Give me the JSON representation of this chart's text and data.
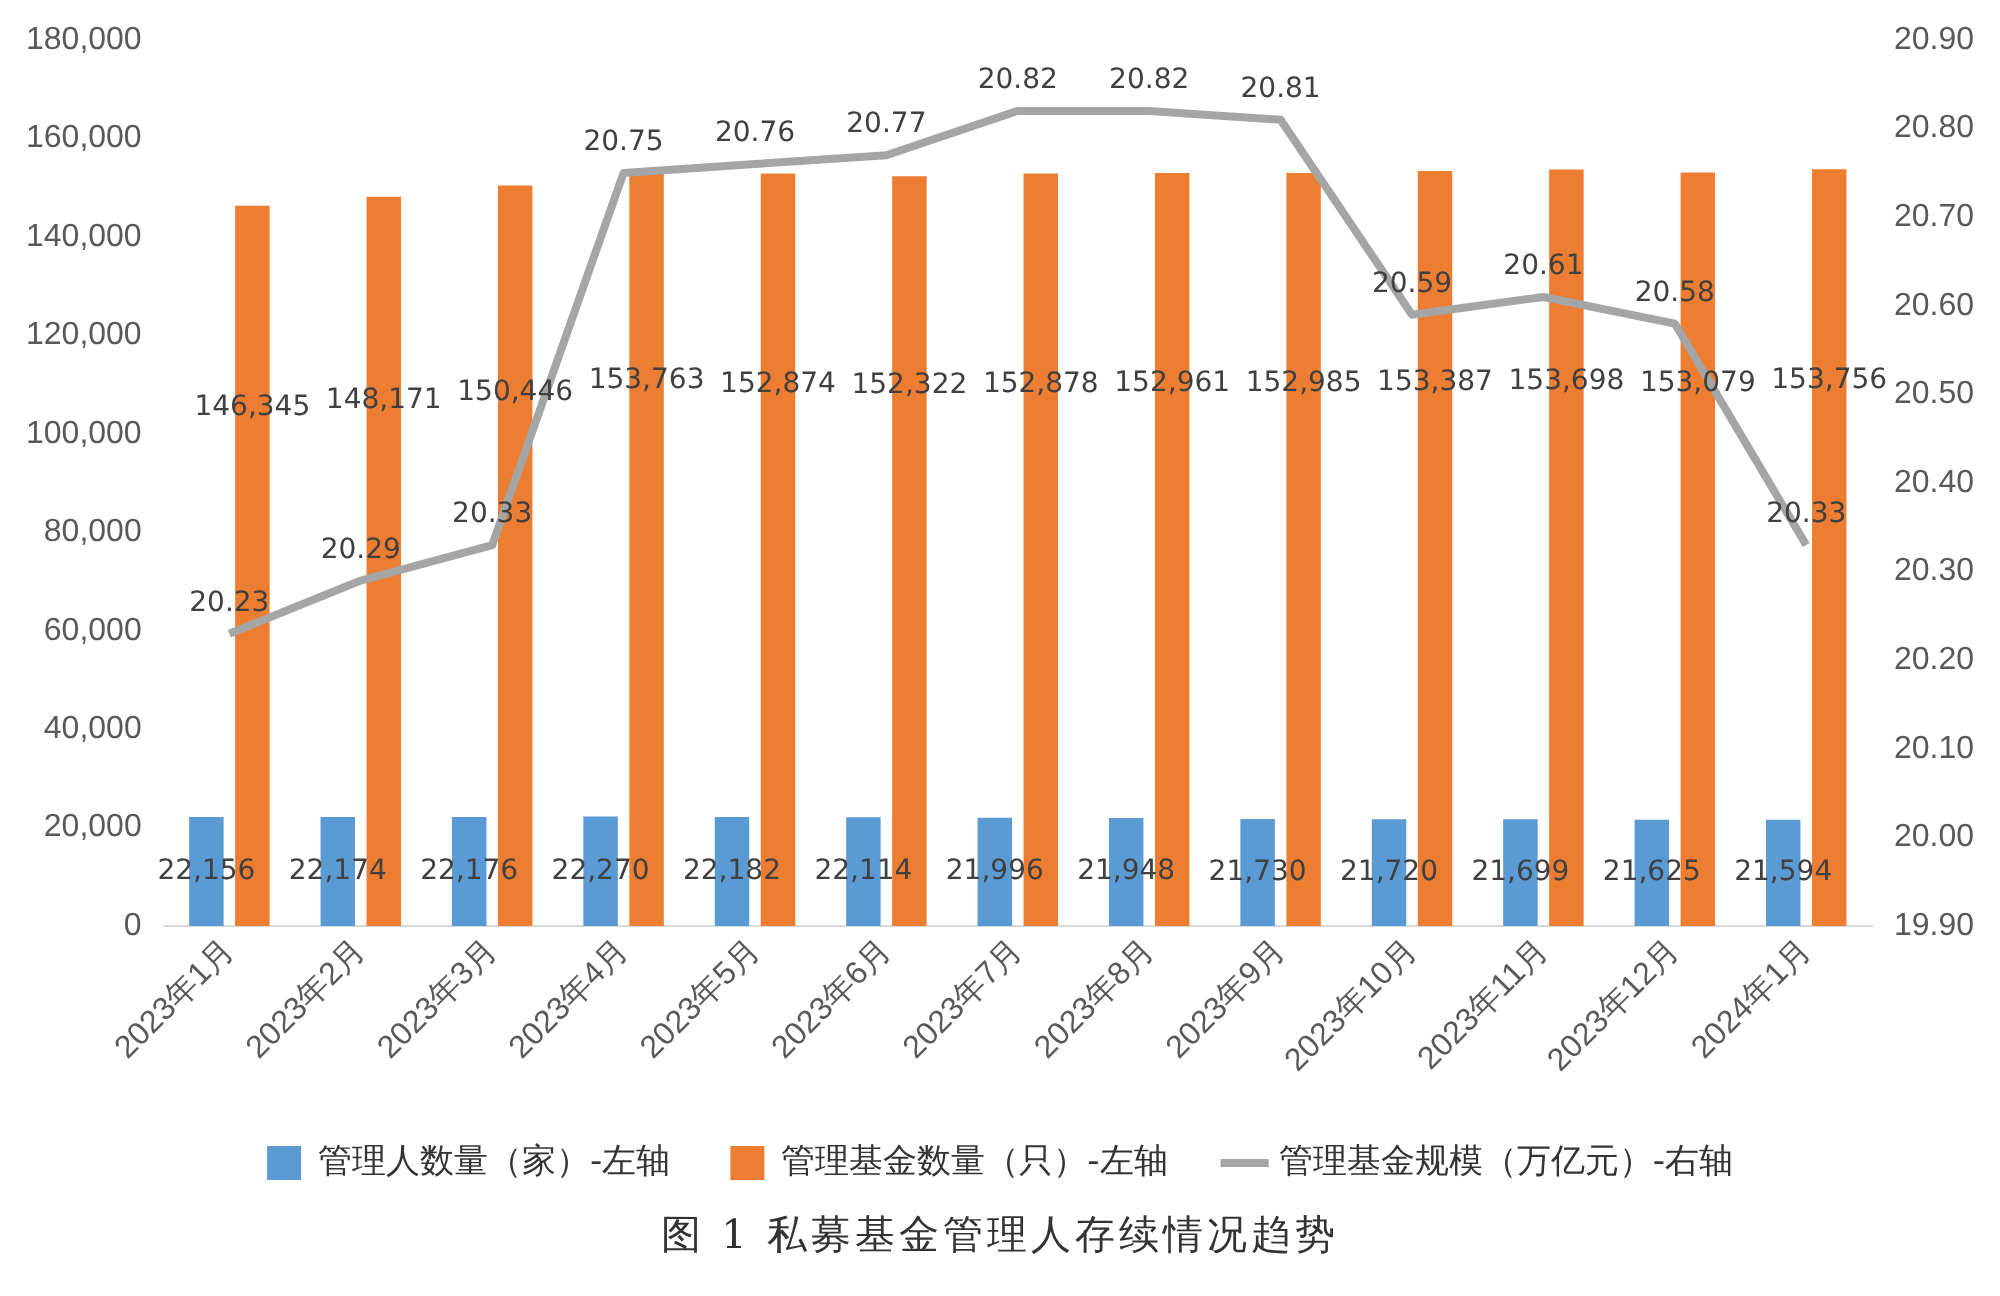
{
  "chart_data": {
    "type": "bar",
    "title": "图 1 私募基金管理人存续情况趋势",
    "categories": [
      "2023年1月",
      "2023年2月",
      "2023年3月",
      "2023年4月",
      "2023年5月",
      "2023年6月",
      "2023年7月",
      "2023年8月",
      "2023年9月",
      "2023年10月",
      "2023年11月",
      "2023年12月",
      "2024年1月"
    ],
    "series": [
      {
        "name": "管理人数量（家）-左轴",
        "color": "#5b9bd5",
        "values": [
          22156,
          22174,
          22176,
          22270,
          22182,
          22114,
          21996,
          21948,
          21730,
          21720,
          21699,
          21625,
          21594
        ],
        "value_labels": [
          "22,156",
          "22,174",
          "22,176",
          "22,270",
          "22,182",
          "22,114",
          "21,996",
          "21,948",
          "21,730",
          "21,720",
          "21,699",
          "21,625",
          "21,594"
        ]
      },
      {
        "name": "管理基金数量（只）-左轴",
        "color": "#ed7d31",
        "values": [
          146345,
          148171,
          150446,
          153763,
          152874,
          152322,
          152878,
          152961,
          152985,
          153387,
          153698,
          153079,
          153756
        ],
        "value_labels": [
          "146,345",
          "148,171",
          "150,446",
          "153,763",
          "152,874",
          "152,322",
          "152,878",
          "152,961",
          "152,985",
          "153,387",
          "153,698",
          "153,079",
          "153,756"
        ]
      },
      {
        "name": "管理基金规模（万亿元）-右轴",
        "type": "line",
        "axis": "y2",
        "color": "#a5a5a5",
        "values": [
          20.23,
          20.29,
          20.33,
          20.75,
          20.76,
          20.77,
          20.82,
          20.82,
          20.81,
          20.59,
          20.61,
          20.58,
          20.33
        ]
      }
    ],
    "ylim": [
      0,
      180000
    ],
    "yticks": [
      0,
      {
        "value": 20000,
        "label": "20,000"
      },
      {
        "value": 40000,
        "label": "40,000"
      },
      {
        "value": 60000,
        "label": "60,000"
      },
      {
        "value": 80000,
        "label": "80,000"
      },
      {
        "value": 100000,
        "label": "100,000"
      },
      {
        "value": 120000,
        "label": "120,000"
      },
      {
        "value": 140000,
        "label": "140,000"
      },
      {
        "value": 160000,
        "label": "160,000"
      },
      {
        "value": 180000,
        "label": "180,000"
      }
    ],
    "y2lim": [
      19.9,
      20.9
    ],
    "y2ticks": [
      {
        "value": 19.9,
        "label": "19.90"
      },
      {
        "value": 20,
        "label": "20.00"
      },
      {
        "value": 20.1,
        "label": "20.10"
      },
      {
        "value": 20.2,
        "label": "20.20"
      },
      {
        "value": 20.3,
        "label": "20.30"
      },
      {
        "value": 20.4,
        "label": "20.40"
      },
      {
        "value": 20.5,
        "label": "20.50"
      },
      {
        "value": 20.6,
        "label": "20.60"
      },
      {
        "value": 20.7,
        "label": "20.70"
      },
      {
        "value": 20.8,
        "label": "20.80"
      },
      {
        "value": 20.9,
        "label": "20.90"
      }
    ],
    "data_labels": true,
    "legend": "bottom",
    "grid": false,
    "marker": "none"
  }
}
